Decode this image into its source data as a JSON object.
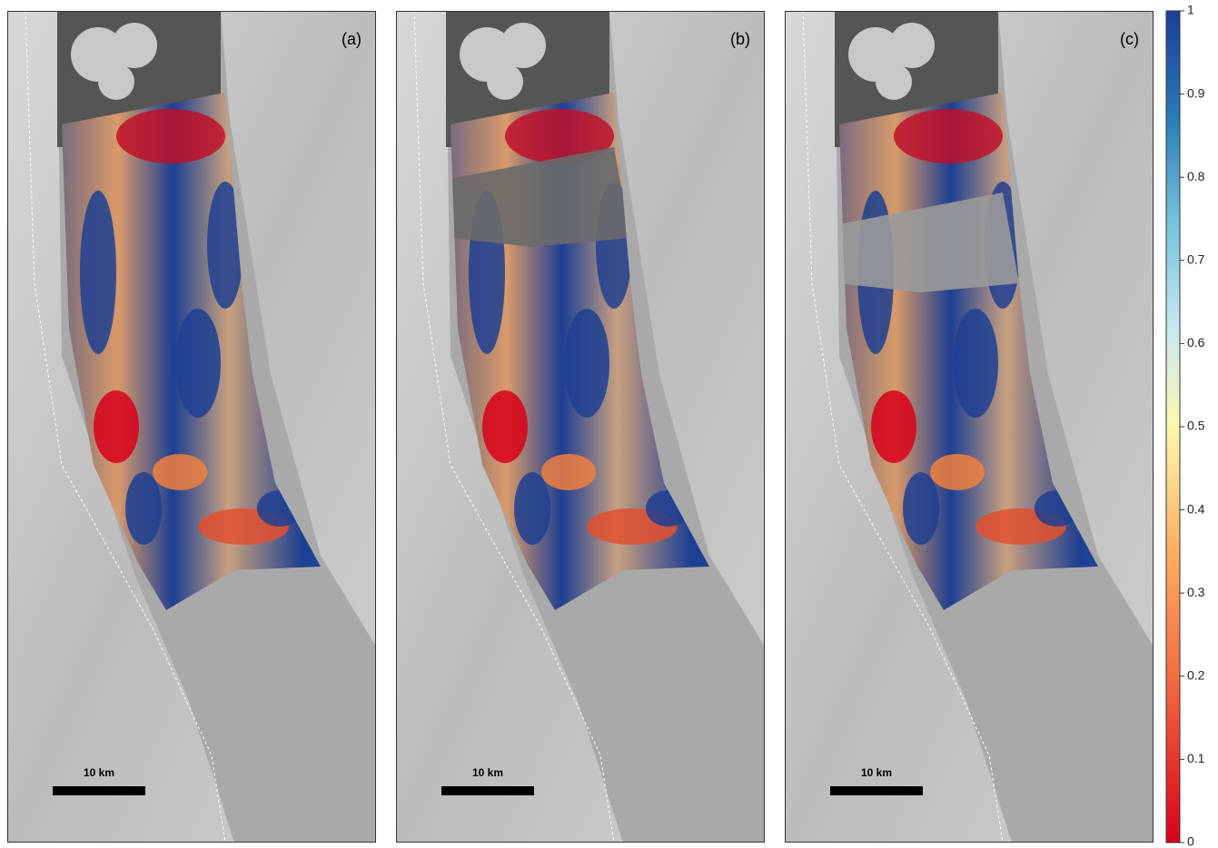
{
  "panels": [
    {
      "label": "(a)",
      "scale_bar": "10 km"
    },
    {
      "label": "(b)",
      "scale_bar": "10 km"
    },
    {
      "label": "(c)",
      "scale_bar": "10 km"
    }
  ],
  "colorbar": {
    "lim": [
      0,
      1
    ],
    "ticks": [
      0,
      0.1,
      0.2,
      0.3,
      0.4,
      0.5,
      0.6,
      0.7,
      0.8,
      0.9,
      1
    ]
  }
}
